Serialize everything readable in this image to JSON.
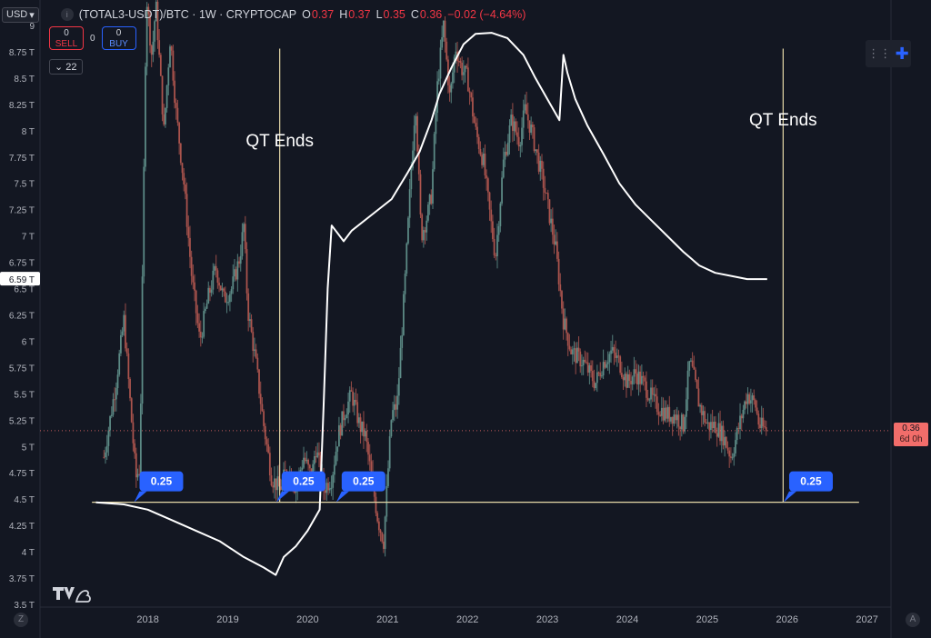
{
  "header": {
    "currency": "USD",
    "symbol": "(TOTAL3-USDT)/BTC · 1W · CRYPTOCAP",
    "ohlc": [
      {
        "k": "O",
        "v": "0.37"
      },
      {
        "k": "H",
        "v": "0.37"
      },
      {
        "k": "L",
        "v": "0.35"
      },
      {
        "k": "C",
        "v": "0.36"
      },
      {
        "k": "",
        "v": "−0.02 (−4.64%)"
      }
    ]
  },
  "trade": {
    "sell_count": "0",
    "sell_label": "SELL",
    "spread": "0",
    "buy_count": "0",
    "buy_label": "BUY"
  },
  "indicator_counter": "22",
  "current_price": {
    "value": "0.36",
    "countdown": "6d 0h"
  },
  "colors": {
    "background": "#131722",
    "overlay_line": "#ffffff",
    "support_line": "#e6d9a8",
    "callout": "#2962ff",
    "candle_up": "#5f8f8a",
    "candle_down": "#b0564f"
  },
  "icons": [
    "chevron-down-icon",
    "symbol-logo-icon",
    "grid-dots-icon",
    "crosshair-icon",
    "tradingview-logo-icon"
  ],
  "chart_data": {
    "type": "line",
    "title": "",
    "y_axis": {
      "labels": [
        "3.5 T",
        "3.75 T",
        "4 T",
        "4.25 T",
        "4.5 T",
        "4.75 T",
        "5 T",
        "5.25 T",
        "5.5 T",
        "5.75 T",
        "6 T",
        "6.25 T",
        "6.5 T",
        "6.75 T",
        "7 T",
        "7.25 T",
        "7.5 T",
        "7.75 T",
        "8 T",
        "8.25 T",
        "8.5 T",
        "8.75 T",
        "9"
      ],
      "values": [
        3.5,
        3.75,
        4,
        4.25,
        4.5,
        4.75,
        5,
        5.25,
        5.5,
        5.75,
        6,
        6.25,
        6.5,
        6.75,
        7,
        7.25,
        7.5,
        7.75,
        8,
        8.25,
        8.5,
        8.75,
        9
      ],
      "range": [
        3.5,
        9.0
      ],
      "highlight": {
        "label": "6.59 T",
        "value": 6.59
      }
    },
    "x_axis": {
      "labels": [
        "2018",
        "2019",
        "2020",
        "2021",
        "2022",
        "2023",
        "2024",
        "2025",
        "2026",
        "2027"
      ],
      "values": [
        2018,
        2019,
        2020,
        2021,
        2022,
        2023,
        2024,
        2025,
        2026,
        2027
      ],
      "range": [
        2016.65,
        2027.3
      ]
    },
    "grid": false,
    "series": [
      {
        "kind": "candles",
        "close_path": [
          [
            2017.45,
            4.9
          ],
          [
            2017.6,
            5.6
          ],
          [
            2017.7,
            6.2
          ],
          [
            2017.85,
            4.7
          ],
          [
            2017.9,
            4.8
          ],
          [
            2017.98,
            9.3
          ],
          [
            2018.05,
            8.7
          ],
          [
            2018.1,
            9.2
          ],
          [
            2018.2,
            8.0
          ],
          [
            2018.28,
            8.9
          ],
          [
            2018.35,
            8.2
          ],
          [
            2018.45,
            7.5
          ],
          [
            2018.55,
            6.6
          ],
          [
            2018.65,
            6.0
          ],
          [
            2018.75,
            6.4
          ],
          [
            2018.85,
            6.7
          ],
          [
            2018.95,
            6.4
          ],
          [
            2019.05,
            6.5
          ],
          [
            2019.15,
            6.8
          ],
          [
            2019.2,
            7.1
          ],
          [
            2019.25,
            6.3
          ],
          [
            2019.35,
            5.8
          ],
          [
            2019.45,
            5.2
          ],
          [
            2019.55,
            4.7
          ],
          [
            2019.65,
            4.6
          ],
          [
            2019.75,
            4.8
          ],
          [
            2019.85,
            4.6
          ],
          [
            2019.95,
            4.9
          ],
          [
            2020.05,
            4.7
          ],
          [
            2020.1,
            5.0
          ],
          [
            2020.2,
            4.6
          ],
          [
            2020.3,
            4.7
          ],
          [
            2020.38,
            5.1
          ],
          [
            2020.45,
            5.3
          ],
          [
            2020.55,
            5.5
          ],
          [
            2020.65,
            5.2
          ],
          [
            2020.72,
            5.1
          ],
          [
            2020.8,
            4.7
          ],
          [
            2020.88,
            4.3
          ],
          [
            2020.95,
            4.1
          ],
          [
            2021.05,
            5.3
          ],
          [
            2021.12,
            5.4
          ],
          [
            2021.22,
            6.6
          ],
          [
            2021.3,
            7.7
          ],
          [
            2021.35,
            8.3
          ],
          [
            2021.42,
            7.0
          ],
          [
            2021.5,
            7.2
          ],
          [
            2021.55,
            7.4
          ],
          [
            2021.62,
            8.4
          ],
          [
            2021.7,
            9.0
          ],
          [
            2021.78,
            8.3
          ],
          [
            2021.85,
            8.8
          ],
          [
            2021.92,
            8.6
          ],
          [
            2022.0,
            8.5
          ],
          [
            2022.1,
            8.0
          ],
          [
            2022.2,
            7.7
          ],
          [
            2022.28,
            7.2
          ],
          [
            2022.35,
            6.8
          ],
          [
            2022.45,
            7.7
          ],
          [
            2022.55,
            8.1
          ],
          [
            2022.65,
            7.9
          ],
          [
            2022.72,
            8.2
          ],
          [
            2022.8,
            8.0
          ],
          [
            2022.95,
            7.5
          ],
          [
            2023.1,
            6.9
          ],
          [
            2023.2,
            6.2
          ],
          [
            2023.3,
            5.9
          ],
          [
            2023.45,
            5.8
          ],
          [
            2023.6,
            5.6
          ],
          [
            2023.7,
            5.8
          ],
          [
            2023.8,
            5.9
          ],
          [
            2023.9,
            5.8
          ],
          [
            2024.0,
            5.6
          ],
          [
            2024.1,
            5.7
          ],
          [
            2024.2,
            5.6
          ],
          [
            2024.35,
            5.4
          ],
          [
            2024.5,
            5.3
          ],
          [
            2024.6,
            5.3
          ],
          [
            2024.7,
            5.2
          ],
          [
            2024.78,
            5.8
          ],
          [
            2024.82,
            5.7
          ],
          [
            2024.9,
            5.4
          ],
          [
            2025.0,
            5.2
          ],
          [
            2025.1,
            5.2
          ],
          [
            2025.2,
            5.1
          ],
          [
            2025.3,
            4.9
          ],
          [
            2025.4,
            5.2
          ],
          [
            2025.5,
            5.5
          ],
          [
            2025.6,
            5.4
          ],
          [
            2025.65,
            5.2
          ],
          [
            2025.75,
            5.15
          ]
        ],
        "current_value": 0.36
      },
      {
        "kind": "line",
        "points": [
          [
            2017.35,
            4.47
          ],
          [
            2017.7,
            4.45
          ],
          [
            2018.0,
            4.4
          ],
          [
            2018.3,
            4.3
          ],
          [
            2018.6,
            4.2
          ],
          [
            2018.9,
            4.1
          ],
          [
            2019.2,
            3.95
          ],
          [
            2019.45,
            3.85
          ],
          [
            2019.6,
            3.78
          ],
          [
            2019.7,
            3.95
          ],
          [
            2019.85,
            4.05
          ],
          [
            2020.0,
            4.2
          ],
          [
            2020.15,
            4.4
          ],
          [
            2020.2,
            5.4
          ],
          [
            2020.25,
            6.5
          ],
          [
            2020.3,
            7.1
          ],
          [
            2020.35,
            7.05
          ],
          [
            2020.45,
            6.95
          ],
          [
            2020.55,
            7.05
          ],
          [
            2020.8,
            7.2
          ],
          [
            2021.05,
            7.35
          ],
          [
            2021.25,
            7.6
          ],
          [
            2021.4,
            7.8
          ],
          [
            2021.55,
            8.1
          ],
          [
            2021.65,
            8.35
          ],
          [
            2021.8,
            8.6
          ],
          [
            2021.95,
            8.82
          ],
          [
            2022.1,
            8.92
          ],
          [
            2022.3,
            8.93
          ],
          [
            2022.5,
            8.88
          ],
          [
            2022.7,
            8.72
          ],
          [
            2022.85,
            8.5
          ],
          [
            2023.0,
            8.3
          ],
          [
            2023.15,
            8.1
          ],
          [
            2023.2,
            8.72
          ],
          [
            2023.25,
            8.55
          ],
          [
            2023.35,
            8.3
          ],
          [
            2023.5,
            8.05
          ],
          [
            2023.7,
            7.78
          ],
          [
            2023.9,
            7.5
          ],
          [
            2024.1,
            7.3
          ],
          [
            2024.3,
            7.15
          ],
          [
            2024.5,
            7.0
          ],
          [
            2024.7,
            6.85
          ],
          [
            2024.9,
            6.72
          ],
          [
            2025.1,
            6.65
          ],
          [
            2025.3,
            6.62
          ],
          [
            2025.5,
            6.59
          ],
          [
            2025.75,
            6.59
          ]
        ]
      }
    ],
    "annotations": [
      {
        "type": "hline",
        "y": 4.47,
        "x_from": 2017.3,
        "x_to": 2026.9
      },
      {
        "type": "vline",
        "x": 2019.65,
        "y_top": 8.78
      },
      {
        "type": "vline",
        "x": 2025.95,
        "y_top": 8.78
      },
      {
        "type": "text",
        "text": "QT Ends",
        "x": 2019.65,
        "y": 7.85
      },
      {
        "type": "text",
        "text": "QT Ends",
        "x": 2025.95,
        "y": 8.05
      },
      {
        "type": "callout",
        "text": "0.25",
        "x": 2017.85,
        "y": 4.47
      },
      {
        "type": "callout",
        "text": "0.25",
        "x": 2019.63,
        "y": 4.47
      },
      {
        "type": "callout",
        "text": "0.25",
        "x": 2020.38,
        "y": 4.47
      },
      {
        "type": "callout",
        "text": "0.25",
        "x": 2025.98,
        "y": 4.47
      }
    ]
  }
}
